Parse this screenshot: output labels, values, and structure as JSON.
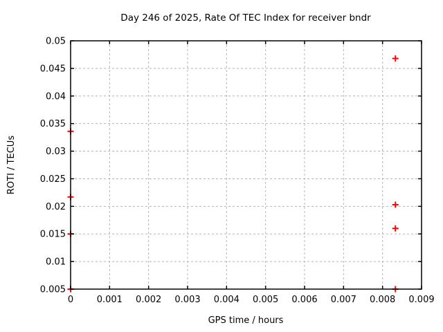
{
  "chart_data": {
    "type": "scatter",
    "title": "Day 246 of 2025, Rate Of TEC Index for receiver bndr",
    "xlabel": "GPS time / hours",
    "ylabel": "ROTI / TECUs",
    "xlim": [
      0,
      0.009
    ],
    "ylim": [
      0.005,
      0.05
    ],
    "xticks": [
      0,
      0.001,
      0.002,
      0.003,
      0.004,
      0.005,
      0.006,
      0.007,
      0.008,
      0.009
    ],
    "xtick_labels": [
      "0",
      "0.001",
      "0.002",
      "0.003",
      "0.004",
      "0.005",
      "0.006",
      "0.007",
      "0.008",
      "0.009"
    ],
    "yticks": [
      0.005,
      0.01,
      0.015,
      0.02,
      0.025,
      0.03,
      0.035,
      0.04,
      0.045,
      0.05
    ],
    "ytick_labels": [
      "0.005",
      "0.01",
      "0.015",
      "0.02",
      "0.025",
      "0.03",
      "0.035",
      "0.04",
      "0.045",
      "0.05"
    ],
    "grid": true,
    "legend_position": "none",
    "series": [
      {
        "name": "ROTI",
        "marker": "plus",
        "color": "#ff0000",
        "points": [
          [
            0,
            0.0336
          ],
          [
            0,
            0.0217
          ],
          [
            0,
            0.015
          ],
          [
            0,
            0.005
          ],
          [
            0.00833,
            0.0468
          ],
          [
            0.00833,
            0.0203
          ],
          [
            0.00833,
            0.016
          ],
          [
            0.00833,
            0.005
          ]
        ]
      }
    ],
    "colors": {
      "marker": "#ff0000",
      "grid": "#b4b4b4",
      "border": "#000000",
      "background": "#ffffff",
      "text": "#000000"
    }
  }
}
